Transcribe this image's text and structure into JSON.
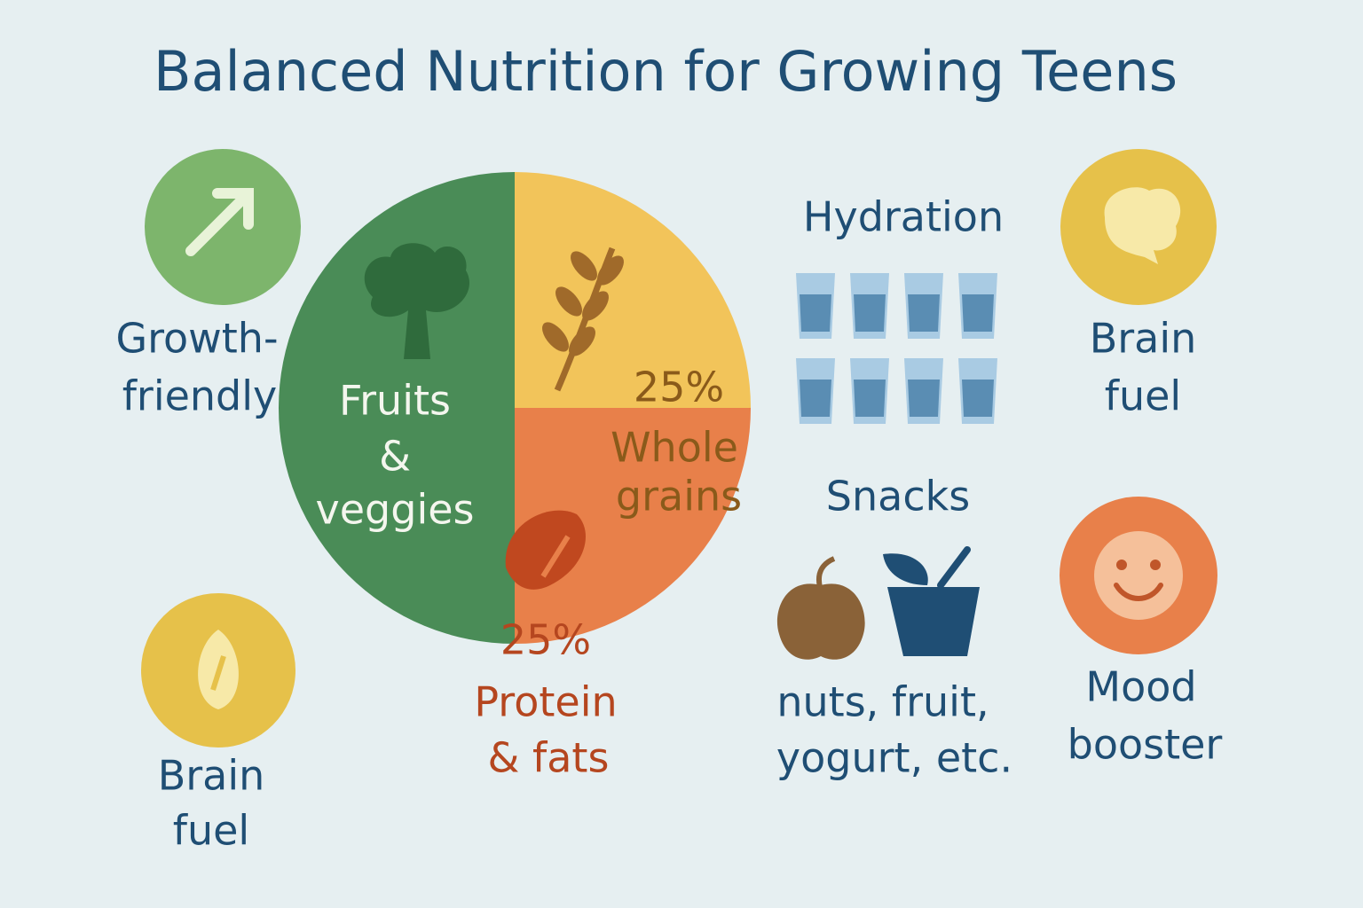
{
  "title": "Balanced Nutrition for Growing Teens",
  "chart_data": {
    "type": "pie",
    "categories": [
      [
        "Whole",
        "grains"
      ],
      [
        "Protein",
        "& fats"
      ],
      [
        "Fruits",
        "&",
        "veggies"
      ]
    ],
    "values": [
      25,
      25,
      50
    ],
    "value_labels": [
      "25%",
      "25%",
      null
    ],
    "colors": [
      "#f2c45a",
      "#e8804a",
      "#4a8c57"
    ]
  },
  "growth": [
    "Growth-",
    "friendly"
  ],
  "brain_fuel_left": [
    "Brain",
    "fuel"
  ],
  "hydration": "Hydration",
  "snacks": {
    "title": "Snacks",
    "caption": [
      "nuts, fruit,",
      "yogurt, etc."
    ]
  },
  "brain_fuel_right": [
    "Brain",
    "fuel"
  ],
  "mood": [
    "Mood",
    "booster"
  ]
}
